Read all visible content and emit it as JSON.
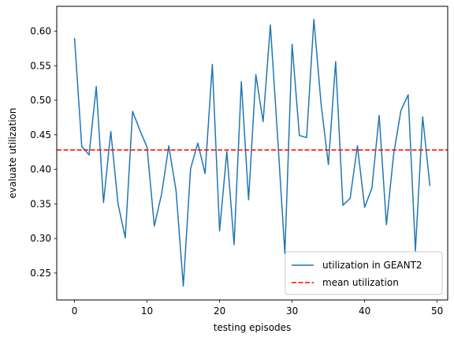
{
  "chart_data": {
    "type": "line",
    "title": "",
    "xlabel": "testing episodes",
    "ylabel": "evaluate utilization",
    "xlim": [
      -2.45,
      51.45
    ],
    "ylim": [
      0.211,
      0.636
    ],
    "xticks": [
      0,
      10,
      20,
      30,
      40,
      50
    ],
    "yticks": [
      0.25,
      0.3,
      0.35,
      0.4,
      0.45,
      0.5,
      0.55,
      0.6
    ],
    "ytick_labels": [
      "0.25",
      "0.30",
      "0.35",
      "0.40",
      "0.45",
      "0.50",
      "0.55",
      "0.60"
    ],
    "grid": false,
    "legend_position": "lower right",
    "series": [
      {
        "name": "utilization in GEANT2",
        "color": "#1f77b4",
        "style": "solid",
        "x": [
          0,
          1,
          2,
          3,
          4,
          5,
          6,
          7,
          8,
          9,
          10,
          11,
          12,
          13,
          14,
          15,
          16,
          17,
          18,
          19,
          20,
          21,
          22,
          23,
          24,
          25,
          26,
          27,
          28,
          29,
          30,
          31,
          32,
          33,
          34,
          35,
          36,
          37,
          38,
          39,
          40,
          41,
          42,
          43,
          44,
          45,
          46,
          47,
          48,
          49
        ],
        "values": [
          0.59,
          0.433,
          0.421,
          0.52,
          0.352,
          0.455,
          0.35,
          0.301,
          0.484,
          0.457,
          0.432,
          0.318,
          0.364,
          0.434,
          0.369,
          0.231,
          0.401,
          0.438,
          0.394,
          0.552,
          0.311,
          0.426,
          0.291,
          0.527,
          0.356,
          0.537,
          0.469,
          0.609,
          0.447,
          0.278,
          0.581,
          0.449,
          0.446,
          0.617,
          0.494,
          0.407,
          0.556,
          0.348,
          0.358,
          0.434,
          0.345,
          0.373,
          0.478,
          0.32,
          0.422,
          0.485,
          0.508,
          0.282,
          0.476,
          0.376
        ]
      },
      {
        "name": "mean utilization",
        "color": "#ff0000",
        "style": "dashed",
        "hline": 0.428
      }
    ]
  }
}
